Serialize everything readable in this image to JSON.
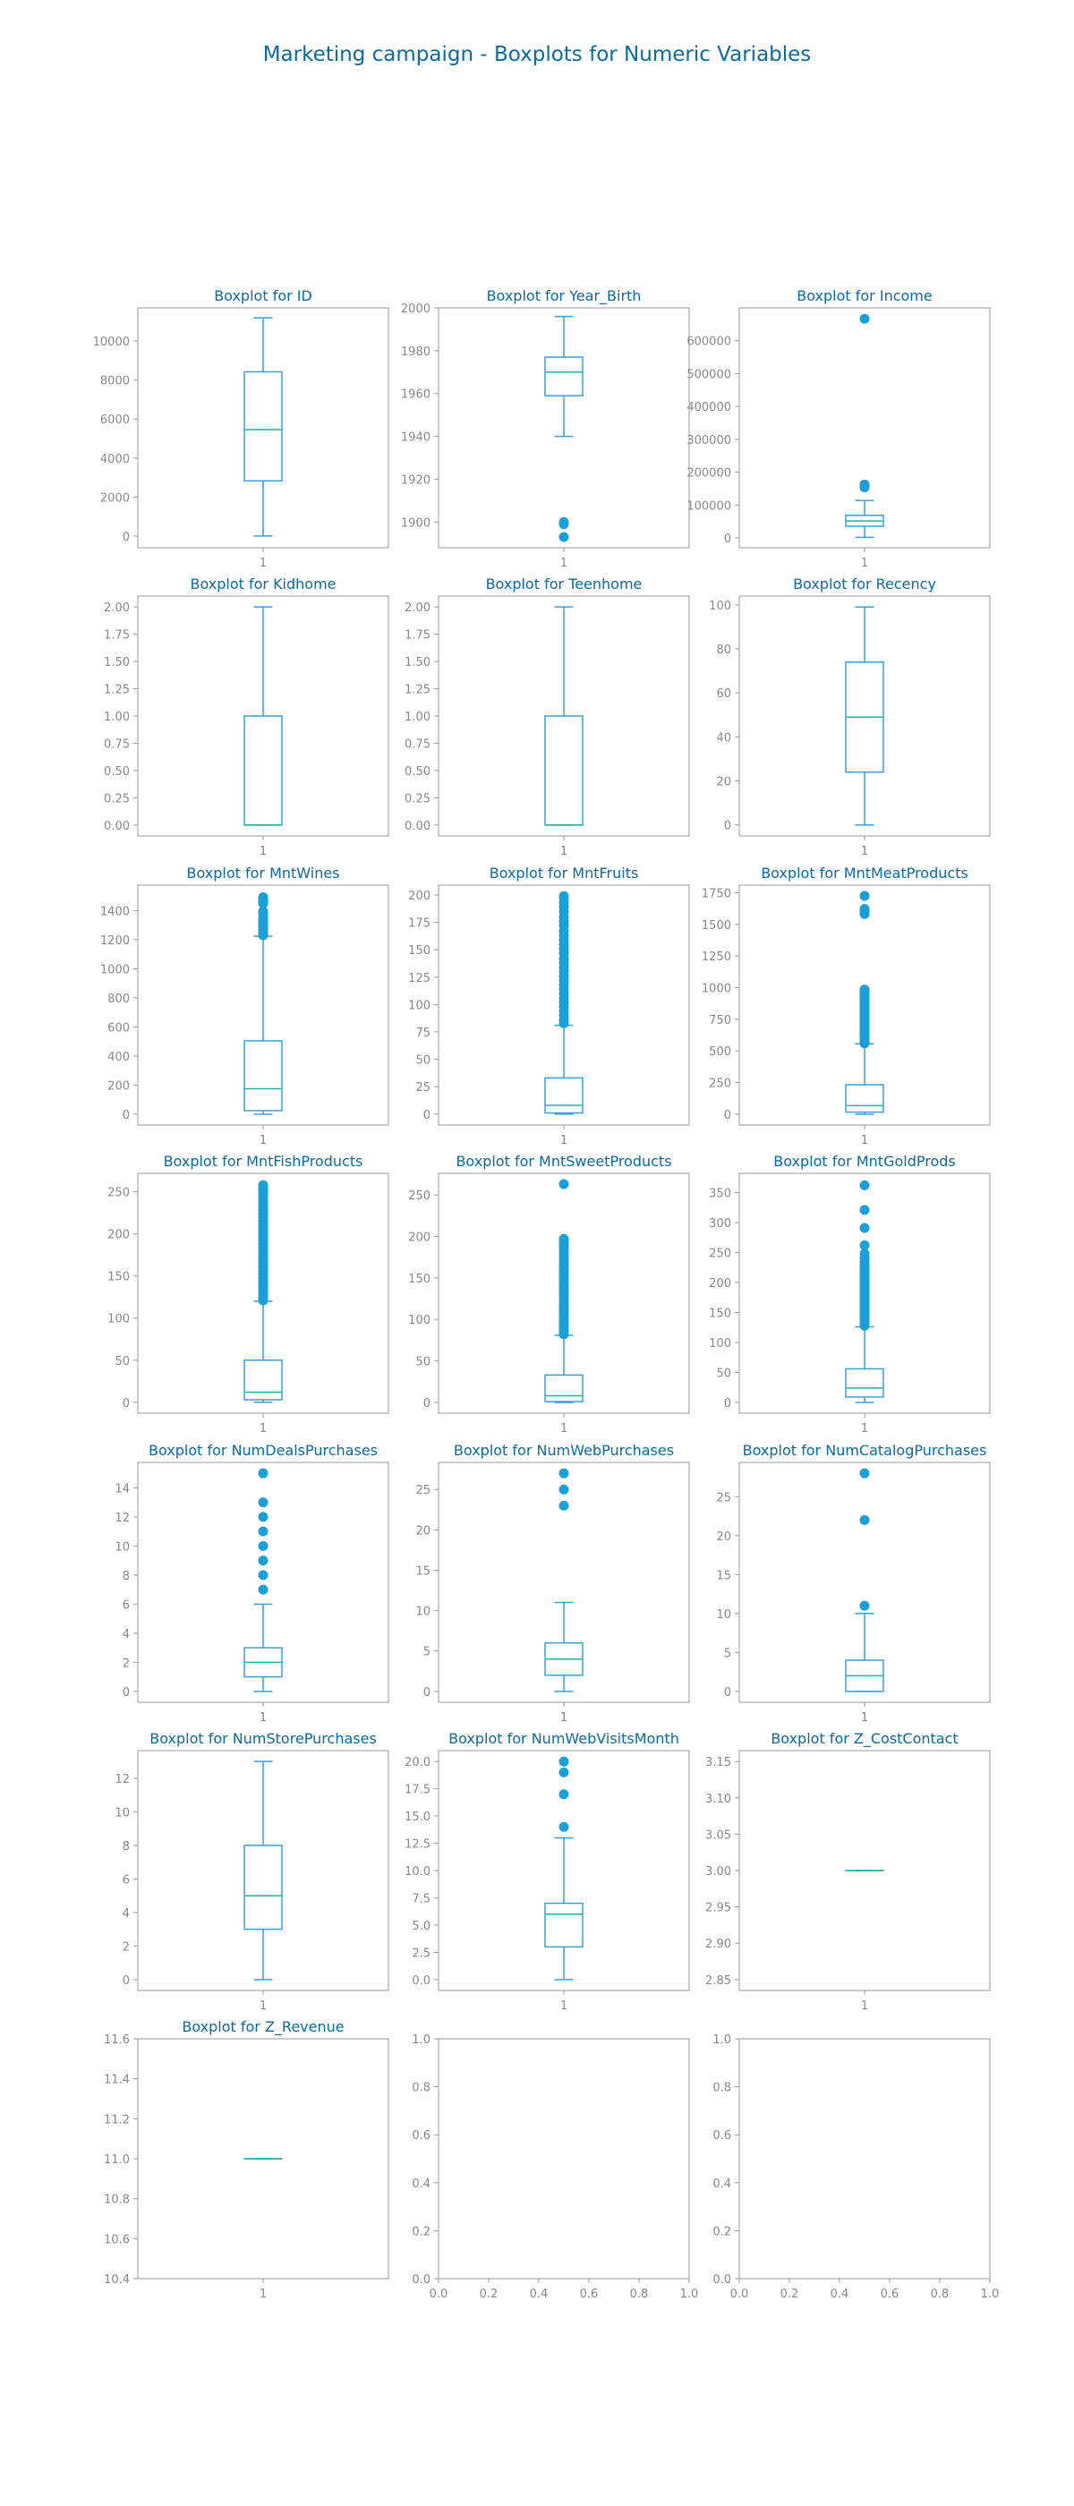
{
  "figure": {
    "title": "Marketing campaign - Boxplots for Numeric Variables",
    "colors": {
      "box": "#3b9ed6",
      "median": "#26b0a0",
      "flier": "#1a9fd6",
      "title": "#0a6aa1",
      "tick": "#888888",
      "frame": "#999999"
    }
  },
  "chart_data": [
    {
      "type": "box",
      "title": "Boxplot for ID",
      "xticks": [
        "1"
      ],
      "ylim": [
        -600,
        11700
      ],
      "yticks": [
        0,
        2000,
        4000,
        6000,
        8000,
        10000
      ],
      "ytick_labels": [
        "0",
        "2000",
        "4000",
        "6000",
        "8000",
        "10000"
      ],
      "stats": {
        "whislo": 0,
        "q1": 2830,
        "med": 5460,
        "q3": 8420,
        "whishi": 11190
      },
      "fliers": []
    },
    {
      "type": "box",
      "title": "Boxplot for Year_Birth",
      "xticks": [
        "1"
      ],
      "ylim": [
        1888,
        2000
      ],
      "yticks": [
        1900,
        1920,
        1940,
        1960,
        1980,
        2000
      ],
      "ytick_labels": [
        "1900",
        "1920",
        "1940",
        "1960",
        "1980",
        "2000"
      ],
      "stats": {
        "whislo": 1940,
        "q1": 1959,
        "med": 1970,
        "q3": 1977,
        "whishi": 1996
      },
      "fliers": [
        1893,
        1899,
        1900
      ]
    },
    {
      "type": "box",
      "title": "Boxplot for Income",
      "xticks": [
        "1"
      ],
      "ylim": [
        -30000,
        700000
      ],
      "yticks": [
        0,
        100000,
        200000,
        300000,
        400000,
        500000,
        600000
      ],
      "ytick_labels": [
        "0",
        "100000",
        "200000",
        "300000",
        "400000",
        "500000",
        "600000"
      ],
      "stats": {
        "whislo": 1730,
        "q1": 35300,
        "med": 51400,
        "q3": 68500,
        "whishi": 113700
      },
      "fliers": [
        153900,
        157100,
        160800,
        162400,
        666666
      ]
    },
    {
      "type": "box",
      "title": "Boxplot for Kidhome",
      "xticks": [
        "1"
      ],
      "ylim": [
        -0.1,
        2.1
      ],
      "yticks": [
        0,
        0.25,
        0.5,
        0.75,
        1,
        1.25,
        1.5,
        1.75,
        2
      ],
      "ytick_labels": [
        "0.00",
        "0.25",
        "0.50",
        "0.75",
        "1.00",
        "1.25",
        "1.50",
        "1.75",
        "2.00"
      ],
      "stats": {
        "whislo": 0,
        "q1": 0,
        "med": 0,
        "q3": 1,
        "whishi": 2
      },
      "fliers": []
    },
    {
      "type": "box",
      "title": "Boxplot for Teenhome",
      "xticks": [
        "1"
      ],
      "ylim": [
        -0.1,
        2.1
      ],
      "yticks": [
        0,
        0.25,
        0.5,
        0.75,
        1,
        1.25,
        1.5,
        1.75,
        2
      ],
      "ytick_labels": [
        "0.00",
        "0.25",
        "0.50",
        "0.75",
        "1.00",
        "1.25",
        "1.50",
        "1.75",
        "2.00"
      ],
      "stats": {
        "whislo": 0,
        "q1": 0,
        "med": 0,
        "q3": 1,
        "whishi": 2
      },
      "fliers": []
    },
    {
      "type": "box",
      "title": "Boxplot for Recency",
      "xticks": [
        "1"
      ],
      "ylim": [
        -5,
        104
      ],
      "yticks": [
        0,
        20,
        40,
        60,
        80,
        100
      ],
      "ytick_labels": [
        "0",
        "20",
        "40",
        "60",
        "80",
        "100"
      ],
      "stats": {
        "whislo": 0,
        "q1": 24,
        "med": 49,
        "q3": 74,
        "whishi": 99
      },
      "fliers": []
    },
    {
      "type": "box",
      "title": "Boxplot for MntWines",
      "xticks": [
        "1"
      ],
      "ylim": [
        -75,
        1575
      ],
      "yticks": [
        0,
        200,
        400,
        600,
        800,
        1000,
        1200,
        1400
      ],
      "ytick_labels": [
        "0",
        "200",
        "400",
        "600",
        "800",
        "1000",
        "1200",
        "1400"
      ],
      "stats": {
        "whislo": 0,
        "q1": 24,
        "med": 174,
        "q3": 504,
        "whishi": 1224
      },
      "fliers": [
        1230,
        1245,
        1260,
        1275,
        1285,
        1296,
        1308,
        1320,
        1332,
        1349,
        1379,
        1394,
        1449,
        1462,
        1478,
        1492
      ]
    },
    {
      "type": "box",
      "title": "Boxplot for MntFruits",
      "xticks": [
        "1"
      ],
      "ylim": [
        -10,
        209
      ],
      "yticks": [
        0,
        25,
        50,
        75,
        100,
        125,
        150,
        175,
        200
      ],
      "ytick_labels": [
        "0",
        "25",
        "50",
        "75",
        "100",
        "125",
        "150",
        "175",
        "200"
      ],
      "stats": {
        "whislo": 0,
        "q1": 1,
        "med": 8,
        "q3": 33,
        "whishi": 81
      },
      "fliers": [
        83,
        86,
        90,
        94,
        98,
        102,
        106,
        110,
        114,
        118,
        122,
        126,
        130,
        134,
        138,
        142,
        147,
        151,
        155,
        159,
        163,
        167,
        172,
        176,
        180,
        185,
        189,
        193,
        197,
        199
      ]
    },
    {
      "type": "box",
      "title": "Boxplot for MntMeatProducts",
      "xticks": [
        "1"
      ],
      "ylim": [
        -86,
        1810
      ],
      "yticks": [
        0,
        250,
        500,
        750,
        1000,
        1250,
        1500,
        1750
      ],
      "ytick_labels": [
        "0",
        "250",
        "500",
        "750",
        "1000",
        "1250",
        "1500",
        "1750"
      ],
      "stats": {
        "whislo": 0,
        "q1": 16,
        "med": 67,
        "q3": 232,
        "whishi": 556
      },
      "fliers": [
        560,
        575,
        590,
        605,
        620,
        640,
        660,
        680,
        700,
        720,
        740,
        760,
        780,
        800,
        820,
        840,
        860,
        880,
        900,
        920,
        940,
        960,
        974,
        984,
        1582,
        1607,
        1622,
        1725
      ]
    },
    {
      "type": "box",
      "title": "Boxplot for MntFishProducts",
      "xticks": [
        "1"
      ],
      "ylim": [
        -13,
        272
      ],
      "yticks": [
        0,
        50,
        100,
        150,
        200,
        250
      ],
      "ytick_labels": [
        "0",
        "50",
        "100",
        "150",
        "200",
        "250"
      ],
      "stats": {
        "whislo": 0,
        "q1": 3,
        "med": 12,
        "q3": 50,
        "whishi": 120
      },
      "fliers": [
        121,
        124,
        128,
        132,
        136,
        140,
        144,
        148,
        152,
        156,
        160,
        164,
        168,
        172,
        176,
        180,
        184,
        188,
        192,
        196,
        200,
        204,
        208,
        212,
        216,
        220,
        224,
        228,
        232,
        236,
        240,
        244,
        248,
        252,
        254,
        258
      ]
    },
    {
      "type": "box",
      "title": "Boxplot for MntSweetProducts",
      "xticks": [
        "1"
      ],
      "ylim": [
        -13,
        276
      ],
      "yticks": [
        0,
        50,
        100,
        150,
        200,
        250
      ],
      "ytick_labels": [
        "0",
        "50",
        "100",
        "150",
        "200",
        "250"
      ],
      "stats": {
        "whislo": 0,
        "q1": 1,
        "med": 8,
        "q3": 33,
        "whishi": 81
      },
      "fliers": [
        82,
        86,
        90,
        94,
        98,
        102,
        106,
        110,
        114,
        118,
        122,
        126,
        130,
        134,
        138,
        142,
        146,
        150,
        154,
        158,
        162,
        166,
        170,
        174,
        178,
        182,
        186,
        190,
        194,
        197,
        263
      ]
    },
    {
      "type": "box",
      "title": "Boxplot for MntGoldProds",
      "xticks": [
        "1"
      ],
      "ylim": [
        -18,
        382
      ],
      "yticks": [
        0,
        50,
        100,
        150,
        200,
        250,
        300,
        350
      ],
      "ytick_labels": [
        "0",
        "50",
        "100",
        "150",
        "200",
        "250",
        "300",
        "350"
      ],
      "stats": {
        "whislo": 0,
        "q1": 9,
        "med": 24,
        "q3": 56,
        "whishi": 126
      },
      "fliers": [
        128,
        133,
        138,
        143,
        148,
        153,
        158,
        163,
        168,
        173,
        178,
        183,
        188,
        193,
        198,
        203,
        208,
        213,
        218,
        224,
        229,
        234,
        241,
        248,
        262,
        291,
        321,
        362
      ]
    },
    {
      "type": "box",
      "title": "Boxplot for NumDealsPurchases",
      "xticks": [
        "1"
      ],
      "ylim": [
        -0.75,
        15.75
      ],
      "yticks": [
        0,
        2,
        4,
        6,
        8,
        10,
        12,
        14
      ],
      "ytick_labels": [
        "0",
        "2",
        "4",
        "6",
        "8",
        "10",
        "12",
        "14"
      ],
      "stats": {
        "whislo": 0,
        "q1": 1,
        "med": 2,
        "q3": 3,
        "whishi": 6
      },
      "fliers": [
        7,
        8,
        9,
        10,
        11,
        12,
        13,
        15
      ]
    },
    {
      "type": "box",
      "title": "Boxplot for NumWebPurchases",
      "xticks": [
        "1"
      ],
      "ylim": [
        -1.35,
        28.35
      ],
      "yticks": [
        0,
        5,
        10,
        15,
        20,
        25
      ],
      "ytick_labels": [
        "0",
        "5",
        "10",
        "15",
        "20",
        "25"
      ],
      "stats": {
        "whislo": 0,
        "q1": 2,
        "med": 4,
        "q3": 6,
        "whishi": 11
      },
      "fliers": [
        23,
        25,
        27
      ]
    },
    {
      "type": "box",
      "title": "Boxplot for NumCatalogPurchases",
      "xticks": [
        "1"
      ],
      "ylim": [
        -1.4,
        29.4
      ],
      "yticks": [
        0,
        5,
        10,
        15,
        20,
        25
      ],
      "ytick_labels": [
        "0",
        "5",
        "10",
        "15",
        "20",
        "25"
      ],
      "stats": {
        "whislo": 0,
        "q1": 0,
        "med": 2,
        "q3": 4,
        "whishi": 10
      },
      "fliers": [
        11,
        22,
        28
      ]
    },
    {
      "type": "box",
      "title": "Boxplot for NumStorePurchases",
      "xticks": [
        "1"
      ],
      "ylim": [
        -0.65,
        13.65
      ],
      "yticks": [
        0,
        2,
        4,
        6,
        8,
        10,
        12
      ],
      "ytick_labels": [
        "0",
        "2",
        "4",
        "6",
        "8",
        "10",
        "12"
      ],
      "stats": {
        "whislo": 0,
        "q1": 3,
        "med": 5,
        "q3": 8,
        "whishi": 13
      },
      "fliers": []
    },
    {
      "type": "box",
      "title": "Boxplot for NumWebVisitsMonth",
      "xticks": [
        "1"
      ],
      "ylim": [
        -1.0,
        21.0
      ],
      "yticks": [
        0,
        2.5,
        5,
        7.5,
        10,
        12.5,
        15,
        17.5,
        20
      ],
      "ytick_labels": [
        "0.0",
        "2.5",
        "5.0",
        "7.5",
        "10.0",
        "12.5",
        "15.0",
        "17.5",
        "20.0"
      ],
      "stats": {
        "whislo": 0,
        "q1": 3,
        "med": 6,
        "q3": 7,
        "whishi": 13
      },
      "fliers": [
        14,
        17,
        19,
        20
      ]
    },
    {
      "type": "box",
      "title": "Boxplot for Z_CostContact",
      "xticks": [
        "1"
      ],
      "ylim": [
        2.835,
        3.165
      ],
      "yticks": [
        2.85,
        2.9,
        2.95,
        3.0,
        3.05,
        3.1,
        3.15
      ],
      "ytick_labels": [
        "2.85",
        "2.90",
        "2.95",
        "3.00",
        "3.05",
        "3.10",
        "3.15"
      ],
      "stats": {
        "whislo": 3,
        "q1": 3,
        "med": 3,
        "q3": 3,
        "whishi": 3
      },
      "fliers": []
    },
    {
      "type": "box",
      "title": "Boxplot for Z_Revenue",
      "xticks": [
        "1"
      ],
      "ylim": [
        10.4,
        11.6
      ],
      "yticks": [
        10.4,
        10.6,
        10.8,
        11.0,
        11.2,
        11.4,
        11.6
      ],
      "ytick_labels": [
        "10.4",
        "10.6",
        "10.8",
        "11.0",
        "11.2",
        "11.4",
        "11.6"
      ],
      "stats": {
        "whislo": 11,
        "q1": 11,
        "med": 11,
        "q3": 11,
        "whishi": 11
      },
      "fliers": []
    },
    {
      "type": "empty",
      "title": "",
      "xlim": [
        0,
        1
      ],
      "ylim": [
        0,
        1
      ],
      "xticks": [
        0,
        0.2,
        0.4,
        0.6,
        0.8,
        1.0
      ],
      "xtick_labels": [
        "0.0",
        "0.2",
        "0.4",
        "0.6",
        "0.8",
        "1.0"
      ],
      "yticks": [
        0,
        0.2,
        0.4,
        0.6,
        0.8,
        1.0
      ],
      "ytick_labels": [
        "0.0",
        "0.2",
        "0.4",
        "0.6",
        "0.8",
        "1.0"
      ]
    },
    {
      "type": "empty",
      "title": "",
      "xlim": [
        0,
        1
      ],
      "ylim": [
        0,
        1
      ],
      "xticks": [
        0,
        0.2,
        0.4,
        0.6,
        0.8,
        1.0
      ],
      "xtick_labels": [
        "0.0",
        "0.2",
        "0.4",
        "0.6",
        "0.8",
        "1.0"
      ],
      "yticks": [
        0,
        0.2,
        0.4,
        0.6,
        0.8,
        1.0
      ],
      "ytick_labels": [
        "0.0",
        "0.2",
        "0.4",
        "0.6",
        "0.8",
        "1.0"
      ]
    }
  ]
}
